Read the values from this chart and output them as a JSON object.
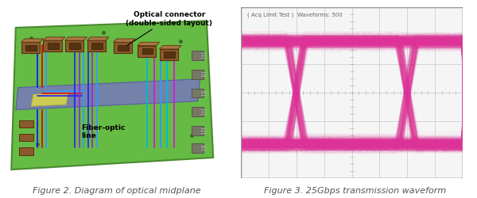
{
  "fig_width": 6.0,
  "fig_height": 2.51,
  "dpi": 100,
  "bg_color": "#ffffff",
  "caption1": "Figure 2. Diagram of optical midplane",
  "caption2": "Figure 3. 25Gbps transmission waveform",
  "caption_fontsize": 8.0,
  "caption_color": "#555555",
  "annotation1": "Optical connector\n(double-sided layout)",
  "annotation2": "Fiber-optic\nline",
  "scope_header": "( Acq Limit Test )  Waveforms: 500",
  "board_green": "#66bb44",
  "board_edge": "#4a8a30",
  "midplane_blue": "#7777bb",
  "midplane_edge": "#5555aa",
  "connector_brown": "#8B5A2B",
  "connector_dark": "#5c3010",
  "connector_tan": "#c8944a",
  "right_conn_color": "#888877",
  "fiber_blue1": "#2222ee",
  "fiber_blue2": "#3399ff",
  "fiber_purple": "#9922dd",
  "fiber_red": "#dd1111",
  "fiber_cyan": "#00bbcc",
  "fiber_magenta": "#cc22cc",
  "eye_pink": "#dd3399",
  "scope_bg": "#f5f5f5",
  "scope_grid": "#c8c8c8",
  "scope_border": "#999999",
  "scope_header_color": "#666666"
}
